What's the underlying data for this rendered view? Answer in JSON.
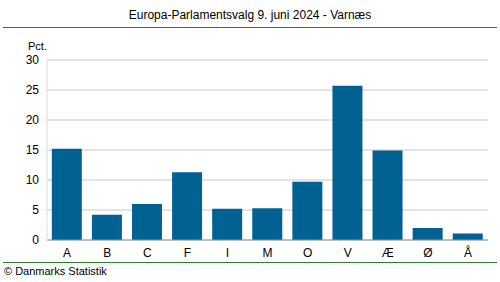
{
  "chart_data": {
    "type": "bar",
    "title": "Europa-Parlamentsvalg 9. juni 2024 - Varnæs",
    "ylabel": "Pct.",
    "source": "© Danmarks Statistik",
    "categories": [
      "A",
      "B",
      "C",
      "F",
      "I",
      "M",
      "O",
      "V",
      "Æ",
      "Ø",
      "Å"
    ],
    "values": [
      15.2,
      4.2,
      6.0,
      11.3,
      5.2,
      5.3,
      9.7,
      25.7,
      14.9,
      2.0,
      1.1
    ],
    "color": "#006192",
    "ylim": [
      0,
      30
    ],
    "yticks": [
      0,
      5,
      10,
      15,
      20,
      25,
      30
    ],
    "grid": true
  }
}
